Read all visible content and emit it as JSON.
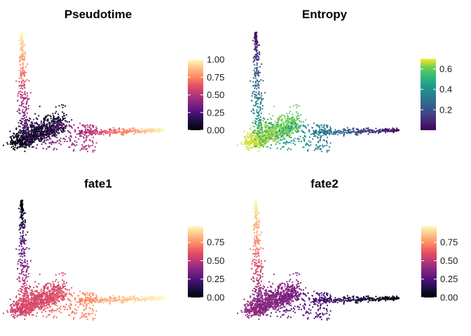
{
  "chart_data": [
    {
      "type": "scatter",
      "title": "Pseudotime",
      "colorbar": {
        "palette": "magma",
        "range": [
          0,
          1
        ],
        "ticks": [
          "0.00",
          "0.25",
          "0.50",
          "0.75",
          "1.00"
        ],
        "tick_values": [
          0,
          0.25,
          0.5,
          0.75,
          1.0
        ]
      },
      "grid": false,
      "axes_visible": false,
      "structure": {
        "description_points": [
          {
            "branch": "root",
            "x": 0.0,
            "y": 0.0,
            "value": 0.0
          },
          {
            "branch": "vertical-tip",
            "x": 0.05,
            "y": 1.0,
            "value": 1.0
          },
          {
            "branch": "horizontal-tip",
            "x": 1.0,
            "y": 0.3,
            "value": 1.0
          }
        ]
      },
      "encoding": {
        "root": 0.02,
        "vertical_tip": 1.0,
        "horizontal_tip": 1.0,
        "cluster": 0.2
      }
    },
    {
      "type": "scatter",
      "title": "Entropy",
      "colorbar": {
        "palette": "viridis",
        "range": [
          0.0,
          0.7
        ],
        "ticks": [
          "0.2",
          "0.4",
          "0.6"
        ],
        "tick_values": [
          0.2,
          0.4,
          0.6
        ]
      },
      "grid": false,
      "axes_visible": false,
      "encoding": {
        "root": 0.68,
        "vertical_tip": 0.02,
        "horizontal_tip": 0.02,
        "cluster": 0.5
      }
    },
    {
      "type": "scatter",
      "title": "fate1",
      "colorbar": {
        "palette": "magma",
        "range": [
          0.0,
          0.97
        ],
        "ticks": [
          "0.00",
          "0.25",
          "0.50",
          "0.75"
        ],
        "tick_values": [
          0,
          0.25,
          0.5,
          0.75
        ]
      },
      "grid": false,
      "axes_visible": false,
      "encoding": {
        "root": 0.55,
        "vertical_tip": 0.0,
        "horizontal_tip": 0.97,
        "cluster": 0.6
      }
    },
    {
      "type": "scatter",
      "title": "fate2",
      "colorbar": {
        "palette": "magma",
        "range": [
          0.0,
          0.97
        ],
        "ticks": [
          "0.00",
          "0.25",
          "0.50",
          "0.75"
        ],
        "tick_values": [
          0,
          0.25,
          0.5,
          0.75
        ]
      },
      "grid": false,
      "axes_visible": false,
      "encoding": {
        "root": 0.4,
        "vertical_tip": 0.97,
        "horizontal_tip": 0.0,
        "cluster": 0.35
      }
    }
  ]
}
